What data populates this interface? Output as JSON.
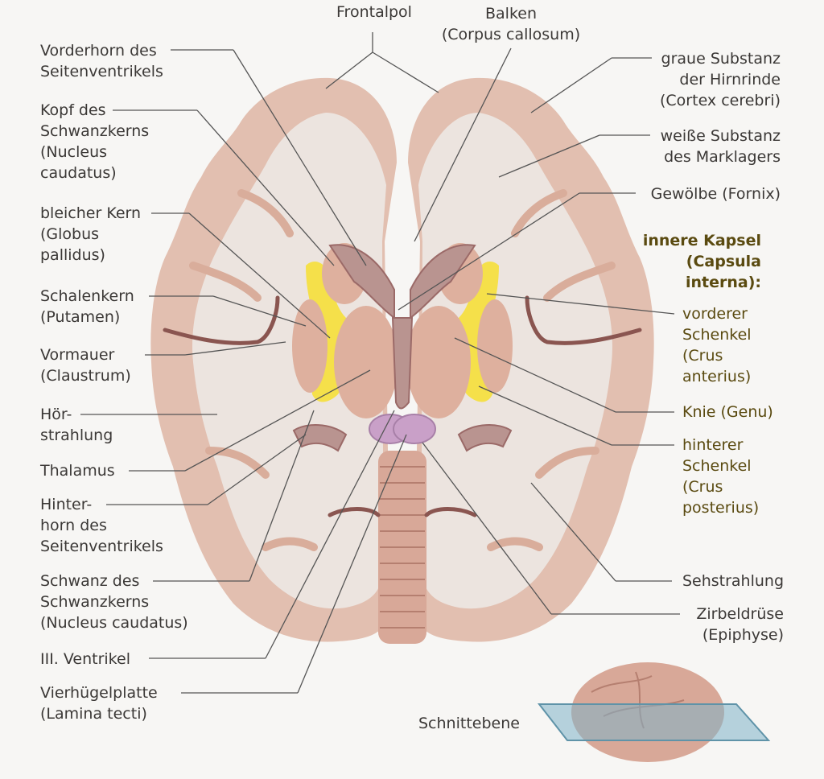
{
  "labels": {
    "frontalpol": "Frontalpol",
    "balken": [
      "Balken",
      "(Corpus callosum)"
    ],
    "vorderhorn": [
      "Vorderhorn des",
      "Seitenventrikels"
    ],
    "kopf_schwanzkern": [
      "Kopf des",
      "Schwanzkerns",
      "(Nucleus",
      "caudatus)"
    ],
    "bleicher_kern": [
      "bleicher Kern",
      "(Globus",
      "pallidus)"
    ],
    "schalenkern": [
      "Schalenkern",
      "(Putamen)"
    ],
    "vormauer": [
      "Vormauer",
      "(Claustrum)"
    ],
    "hoerstrahlung": [
      "Hör-",
      "strahlung"
    ],
    "thalamus": "Thalamus",
    "hinterhorn": [
      "Hinter-",
      "horn des",
      "Seitenventrikels"
    ],
    "schwanz_schwanzkern": [
      "Schwanz des",
      "Schwanzkerns",
      "(Nucleus caudatus)"
    ],
    "ventrikel3": "III. Ventrikel",
    "vierhuegelplatte": [
      "Vierhügelplatte",
      "(Lamina tecti)"
    ],
    "graue_substanz": [
      "graue Substanz",
      "der Hirnrinde",
      "(Cortex cerebri)"
    ],
    "weisse_substanz": [
      "weiße Substanz",
      "des Marklagers"
    ],
    "gewoelbe": "Gewölbe (Fornix)",
    "innere_kapsel": [
      "innere Kapsel",
      "(Capsula",
      "interna):"
    ],
    "vorderer_schenkel": [
      "vorderer",
      "Schenkel",
      "(Crus",
      "anterius)"
    ],
    "knie": "Knie (Genu)",
    "hinterer_schenkel": [
      "hinterer",
      "Schenkel",
      "(Crus",
      "posterius)"
    ],
    "sehstrahlung": "Sehstrahlung",
    "zirbeldruese": [
      "Zirbeldrüse",
      "(Epiphyse)"
    ],
    "schnittebene": "Schnittebene"
  },
  "colors": {
    "cortex": "#e2bfb0",
    "white_matter": "#ece4df",
    "nuclei": "#deb09e",
    "capsule": "#f5e04a",
    "ventricle": "#9b6a68",
    "pineal": "#c9a0c8",
    "highlight_label": "#5a4a10",
    "plane": "#7fb3c8"
  }
}
